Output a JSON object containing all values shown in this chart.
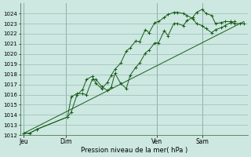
{
  "background_color": "#cce8e0",
  "plot_bg_color": "#cce8e0",
  "grid_color": "#99bbbb",
  "line_color": "#1a5c1a",
  "ylabel": "Pression niveau de la mer( hPa )",
  "ylim": [
    1012,
    1025
  ],
  "xlim": [
    0,
    120
  ],
  "xtick_labels": [
    "Jeu",
    "Dim",
    "Ven",
    "Sam"
  ],
  "xtick_positions": [
    2,
    24,
    72,
    96
  ],
  "figsize": [
    3.2,
    2.0
  ],
  "dpi": 100,
  "series1_x": [
    2,
    5,
    9,
    25,
    27,
    30,
    33,
    35,
    38,
    40,
    43,
    46,
    48,
    50,
    53,
    56,
    58,
    61,
    63,
    66,
    68,
    71,
    73,
    76,
    78,
    81,
    83,
    86,
    88,
    91,
    93,
    96,
    98,
    101,
    103,
    106,
    108,
    111,
    113,
    116,
    118
  ],
  "series1_y": [
    1012.2,
    1012.2,
    1012.6,
    1013.8,
    1015.8,
    1016.1,
    1016.1,
    1016.0,
    1017.5,
    1017.5,
    1016.8,
    1016.4,
    1016.7,
    1018.1,
    1017.1,
    1016.6,
    1017.9,
    1018.7,
    1019.1,
    1020.1,
    1020.4,
    1021.1,
    1021.1,
    1022.3,
    1021.8,
    1023.0,
    1023.0,
    1022.8,
    1023.3,
    1023.6,
    1024.1,
    1024.4,
    1024.0,
    1023.8,
    1023.0,
    1023.1,
    1023.2,
    1023.2,
    1023.0,
    1023.0,
    1023.0
  ],
  "series2_x": [
    2,
    5,
    9,
    25,
    27,
    30,
    33,
    35,
    38,
    40,
    43,
    46,
    48,
    50,
    53,
    56,
    58,
    61,
    63,
    66,
    68,
    71,
    73,
    76,
    78,
    81,
    83,
    86,
    88,
    91,
    93,
    96,
    98,
    101,
    103,
    106,
    108,
    111,
    113
  ],
  "series2_y": [
    1012.2,
    1012.2,
    1012.6,
    1013.8,
    1014.3,
    1016.0,
    1016.5,
    1017.5,
    1017.8,
    1017.1,
    1016.6,
    1017.2,
    1017.9,
    1018.5,
    1019.1,
    1020.3,
    1020.6,
    1021.3,
    1021.2,
    1022.4,
    1022.1,
    1023.1,
    1023.2,
    1023.6,
    1023.9,
    1024.1,
    1024.1,
    1024.0,
    1023.8,
    1023.5,
    1023.0,
    1022.8,
    1022.5,
    1022.1,
    1022.4,
    1022.6,
    1022.8,
    1023.1,
    1023.2
  ],
  "series3_x": [
    2,
    118
  ],
  "series3_y": [
    1012.2,
    1023.2
  ]
}
